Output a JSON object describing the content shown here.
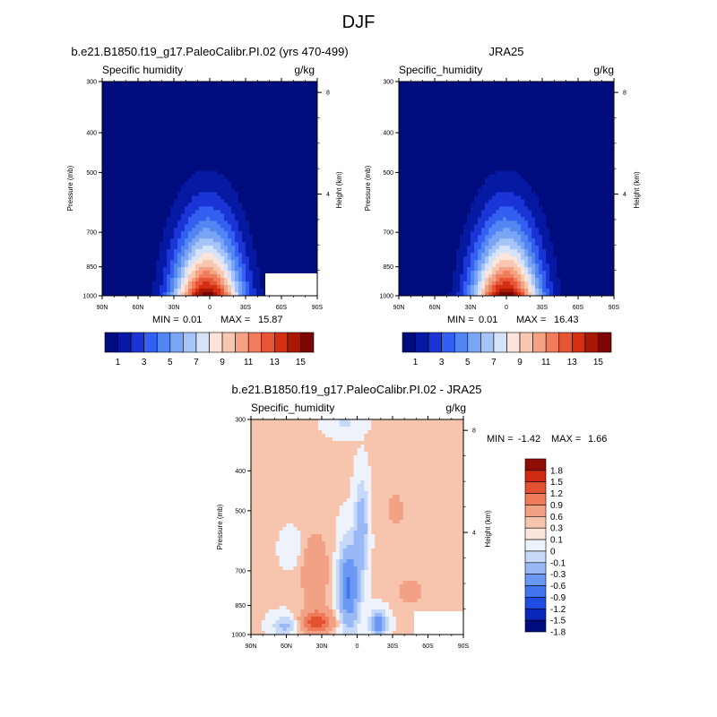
{
  "figure": {
    "title": "DJF"
  },
  "palette_seq": [
    "#000c7d",
    "#0519a3",
    "#1b34d6",
    "#3360f0",
    "#5286f3",
    "#7aa4f5",
    "#a6c4f7",
    "#d4e3fa",
    "#fbe5da",
    "#f8c7b0",
    "#f4a283",
    "#ef7c5a",
    "#e65534",
    "#d42e13",
    "#a81804",
    "#7b0404"
  ],
  "palette_div": [
    "#000c7d",
    "#0928ba",
    "#1f4de3",
    "#4376ee",
    "#6b98f2",
    "#98b9f5",
    "#c6d9f8",
    "#eef2fb",
    "#fbe6dc",
    "#f7c5ae",
    "#f3a184",
    "#ee7b5a",
    "#e35133",
    "#cf2c12",
    "#8f0d03"
  ],
  "colorbar_seq": {
    "labels": [
      "1",
      "3",
      "5",
      "7",
      "9",
      "11",
      "13",
      "15"
    ]
  },
  "colorbar_div": {
    "labels": [
      "1.8",
      "1.5",
      "1.2",
      "0.9",
      "0.6",
      "0.3",
      "0.1",
      "0",
      "-0.1",
      "-0.3",
      "-0.6",
      "-0.9",
      "-1.2",
      "-1.5",
      "-1.8"
    ]
  },
  "chart_data": [
    {
      "type": "heatmap",
      "title": "b.e21.B1850.f19_g17.PaleoCalibr.PI.02 (yrs 470-499)",
      "left_label": "Specific humidity",
      "right_label": "g/kg",
      "xlabel": "",
      "ylabel": "Pressure (mb)",
      "y2label": "Height (km)",
      "x_ticks": [
        "90N",
        "60N",
        "30N",
        "0",
        "30S",
        "60S",
        "90S"
      ],
      "y_ticks": [
        "300",
        "400",
        "500",
        "700",
        "850",
        "1000"
      ],
      "y2_ticks": [
        "8",
        "4"
      ],
      "stats": {
        "min_label": "MIN =",
        "min": "0.01",
        "max_label": "MAX =",
        "max": "15.87"
      },
      "xlim": [
        90,
        -90
      ],
      "ylim": [
        1000,
        300
      ],
      "units": "g/kg"
    },
    {
      "type": "heatmap",
      "title": "JRA25",
      "left_label": "Specific_humidity",
      "right_label": "g/kg",
      "xlabel": "",
      "ylabel": "Pressure (mb)",
      "y2label": "Height (km)",
      "x_ticks": [
        "90N",
        "60N",
        "30N",
        "0",
        "30S",
        "60S",
        "90S"
      ],
      "y_ticks": [
        "300",
        "400",
        "500",
        "700",
        "850",
        "1000"
      ],
      "y2_ticks": [
        "8",
        "4"
      ],
      "stats": {
        "min_label": "MIN =",
        "min": "0.01",
        "max_label": "MAX =",
        "max": "16.43"
      },
      "xlim": [
        90,
        -90
      ],
      "ylim": [
        1000,
        300
      ],
      "units": "g/kg"
    },
    {
      "type": "heatmap",
      "title": "b.e21.B1850.f19_g17.PaleoCalibr.PI.02 - JRA25",
      "left_label": "Specific_humidity",
      "right_label": "g/kg",
      "xlabel": "",
      "ylabel": "Pressure (mb)",
      "y2label": "Height (km)",
      "x_ticks": [
        "90N",
        "60N",
        "30N",
        "0",
        "30S",
        "60S",
        "90S"
      ],
      "y_ticks": [
        "300",
        "400",
        "500",
        "700",
        "850",
        "1000"
      ],
      "y2_ticks": [
        "8",
        "4"
      ],
      "stats": {
        "min_label": "MIN =",
        "min": "-1.42",
        "max_label": "MAX =",
        "max": "1.66"
      },
      "xlim": [
        90,
        -90
      ],
      "ylim": [
        1000,
        300
      ],
      "units": "g/kg"
    }
  ]
}
